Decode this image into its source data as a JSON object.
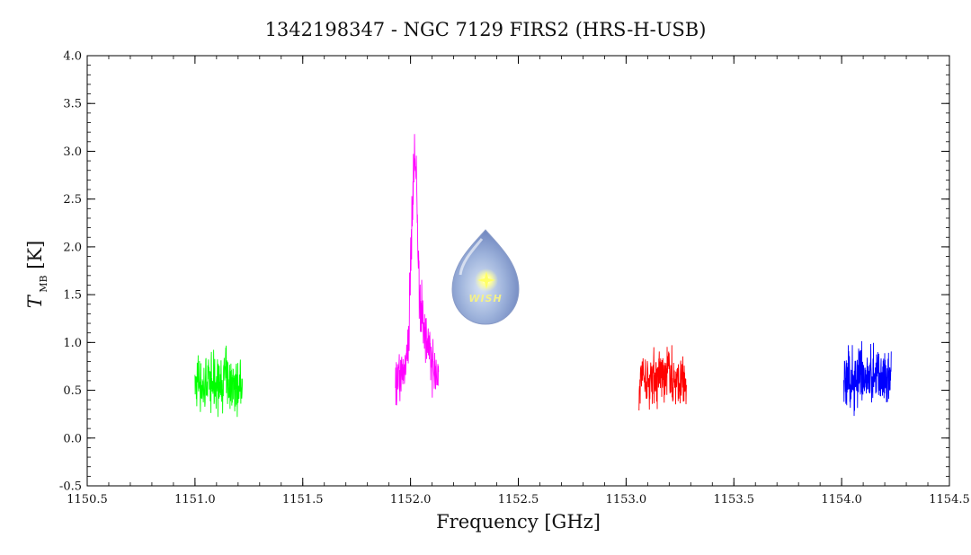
{
  "chart_data": {
    "type": "line",
    "title": "1342198347 - NGC 7129 FIRS2 (HRS-H-USB)",
    "xlabel": "Frequency [GHz]",
    "ylabel": "T",
    "ylabel_subscript": "MB",
    "ylabel_unit": "[K]",
    "xlim": [
      1150.5,
      1154.5
    ],
    "ylim": [
      -0.5,
      4.0
    ],
    "x_ticks": [
      "1150.5",
      "1151.0",
      "1151.5",
      "1152.0",
      "1152.5",
      "1153.0",
      "1153.5",
      "1154.0",
      "1154.5"
    ],
    "y_ticks": [
      "-0.5",
      "0.0",
      "0.5",
      "1.0",
      "1.5",
      "2.0",
      "2.5",
      "3.0",
      "3.5",
      "4.0"
    ],
    "grid": false,
    "legend": "none",
    "series": [
      {
        "color": "#00ff00",
        "x": [
          1151.0,
          1151.02,
          1151.04,
          1151.06,
          1151.08,
          1151.1,
          1151.12,
          1151.14,
          1151.16,
          1151.18,
          1151.2,
          1151.22
        ],
        "y": [
          0.55,
          0.6,
          0.5,
          0.62,
          0.55,
          0.58,
          0.52,
          0.65,
          0.55,
          0.6,
          0.52,
          0.58
        ],
        "noise": 0.35
      },
      {
        "color": "#ff00ff",
        "x": [
          1151.93,
          1151.95,
          1151.97,
          1151.99,
          1152.0,
          1152.01,
          1152.02,
          1152.03,
          1152.04,
          1152.05,
          1152.07,
          1152.09,
          1152.11,
          1152.13
        ],
        "y": [
          0.65,
          0.6,
          0.7,
          1.0,
          1.8,
          2.5,
          3.0,
          2.4,
          1.6,
          1.3,
          1.1,
          0.85,
          0.7,
          0.65
        ],
        "noise": 0.35
      },
      {
        "color": "#ff0000",
        "x": [
          1153.06,
          1153.08,
          1153.1,
          1153.12,
          1153.14,
          1153.16,
          1153.18,
          1153.2,
          1153.22,
          1153.24,
          1153.26,
          1153.28
        ],
        "y": [
          0.6,
          0.65,
          0.55,
          0.7,
          0.62,
          0.68,
          0.6,
          0.72,
          0.58,
          0.62,
          0.55,
          0.6
        ],
        "noise": 0.35
      },
      {
        "color": "#0000ff",
        "x": [
          1154.01,
          1154.03,
          1154.05,
          1154.07,
          1154.09,
          1154.11,
          1154.13,
          1154.15,
          1154.17,
          1154.19,
          1154.21,
          1154.23
        ],
        "y": [
          0.6,
          0.62,
          0.55,
          0.65,
          0.6,
          0.66,
          0.58,
          0.68,
          0.6,
          0.62,
          0.56,
          0.6
        ],
        "noise": 0.4
      }
    ]
  },
  "logo": {
    "text": "WISH",
    "icon": "wish-water-drop-icon"
  }
}
